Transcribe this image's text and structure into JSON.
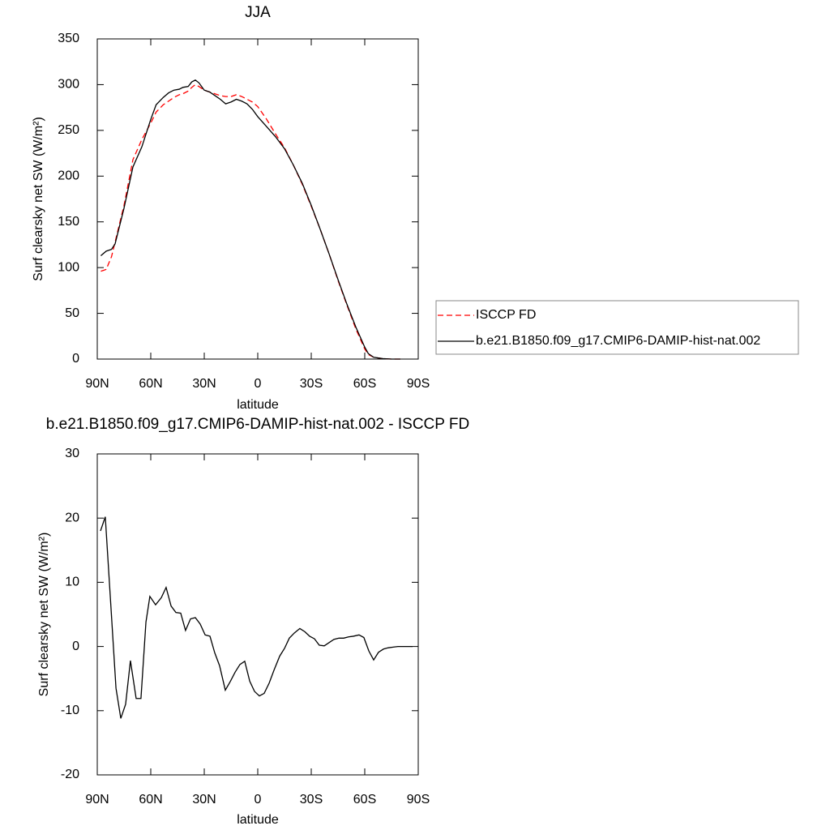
{
  "chart_data": [
    {
      "type": "line",
      "title": "JJA",
      "xlabel": "latitude",
      "ylabel": "Surf clearsky net SW (W/m²)",
      "x": [
        88,
        85,
        82,
        80,
        75,
        70,
        65,
        60,
        57,
        53,
        50,
        47,
        44,
        42,
        39,
        37,
        35,
        33,
        30,
        27,
        24,
        21,
        18,
        15,
        12,
        9,
        6,
        3,
        0,
        -5,
        -10,
        -15,
        -20,
        -25,
        -30,
        -35,
        -40,
        -45,
        -50,
        -55,
        -60,
        -62,
        -65,
        -70,
        -75,
        -80
      ],
      "series": [
        {
          "name": "ISCCP FD",
          "color": "#ff0000",
          "dash": true,
          "values": [
            96,
            98,
            112,
            128,
            168,
            218,
            240,
            258,
            270,
            278,
            282,
            286,
            289,
            290,
            293,
            297,
            300,
            298,
            294,
            292,
            290,
            288,
            287,
            287,
            289,
            287,
            284,
            281,
            276,
            262,
            246,
            231,
            212,
            191,
            167,
            142,
            115,
            86,
            59,
            33,
            11,
            5,
            2,
            0.5,
            0,
            0
          ]
        },
        {
          "name": "b.e21.B1850.f09_g17.CMIP6-DAMIP-hist-nat.002",
          "color": "#000000",
          "dash": false,
          "values": [
            113,
            118,
            120,
            126,
            165,
            210,
            232,
            262,
            278,
            286,
            291,
            294,
            295,
            297,
            298,
            303,
            305,
            302,
            294,
            292,
            288,
            284,
            279,
            281,
            284,
            282,
            279,
            273,
            265,
            254,
            243,
            230,
            212,
            192,
            168,
            142,
            115,
            87,
            60,
            35,
            13,
            6,
            2,
            0.5,
            0,
            0
          ]
        }
      ],
      "xlim": [
        90,
        -90
      ],
      "ylim": [
        0,
        350
      ],
      "xticks": [
        {
          "value": 90,
          "label": "90N"
        },
        {
          "value": 60,
          "label": "60N"
        },
        {
          "value": 30,
          "label": "30N"
        },
        0,
        {
          "value": -30,
          "label": "30S"
        },
        {
          "value": -60,
          "label": "60S"
        },
        {
          "value": -90,
          "label": "90S"
        }
      ],
      "yticks": [
        0,
        50,
        100,
        150,
        200,
        250,
        300,
        350
      ],
      "legend": "right"
    },
    {
      "type": "line",
      "title": "b.e21.B1850.f09_g17.CMIP6-DAMIP-hist-nat.002 - ISCCP FD",
      "xlabel": "latitude",
      "ylabel": "Surf clearsky net SW (W/m²)",
      "x": [
        88.2,
        85.5,
        82.3,
        79.5,
        76.8,
        74.1,
        71.4,
        68.2,
        65.5,
        62.7,
        60.5,
        57.3,
        54.1,
        51.4,
        48.6,
        45.9,
        43.2,
        40.5,
        37.7,
        35,
        32.3,
        29.5,
        26.8,
        24.1,
        21.4,
        18.2,
        15.5,
        12.7,
        10,
        7.3,
        4.5,
        1.8,
        -0.9,
        -3.6,
        -6.4,
        -9.1,
        -12.3,
        -15,
        -17.7,
        -20.5,
        -23.6,
        -26.4,
        -29.1,
        -31.8,
        -34.5,
        -37.3,
        -40,
        -42.7,
        -45.5,
        -48.2,
        -50.9,
        -53.6,
        -56.8,
        -59.5,
        -62.3,
        -65,
        -67.7,
        -70.5,
        -73.2,
        -75.9,
        -78.6,
        -81.4,
        -84.1,
        -86.8
      ],
      "series": [
        {
          "color": "#000000",
          "dash": false,
          "values": [
            18,
            20.2,
            6,
            -6.5,
            -11.2,
            -9,
            -2.2,
            -8.1,
            -8.1,
            3.8,
            7.8,
            6.5,
            7.6,
            9.2,
            6.3,
            5.3,
            5.2,
            2.5,
            4.3,
            4.5,
            3.5,
            1.8,
            1.6,
            -1,
            -3,
            -6.8,
            -5.5,
            -4,
            -2.8,
            -2.3,
            -5.4,
            -7,
            -7.7,
            -7.3,
            -5.7,
            -3.7,
            -1.5,
            -0.3,
            1.3,
            2.1,
            2.8,
            2.3,
            1.6,
            1.2,
            0.2,
            0.1,
            0.6,
            1.1,
            1.3,
            1.3,
            1.5,
            1.6,
            1.8,
            1.4,
            -0.7,
            -2.1,
            -0.9,
            -0.4,
            -0.2,
            -0.1,
            0,
            0,
            0,
            0
          ]
        }
      ],
      "xlim": [
        90,
        -90
      ],
      "ylim": [
        -20,
        30
      ],
      "xticks": [
        {
          "value": 90,
          "label": "90N"
        },
        {
          "value": 60,
          "label": "60N"
        },
        {
          "value": 30,
          "label": "30N"
        },
        0,
        {
          "value": -30,
          "label": "30S"
        },
        {
          "value": -60,
          "label": "60S"
        },
        {
          "value": -90,
          "label": "90S"
        }
      ],
      "yticks": [
        -20,
        -10,
        0,
        10,
        20,
        30
      ]
    }
  ]
}
